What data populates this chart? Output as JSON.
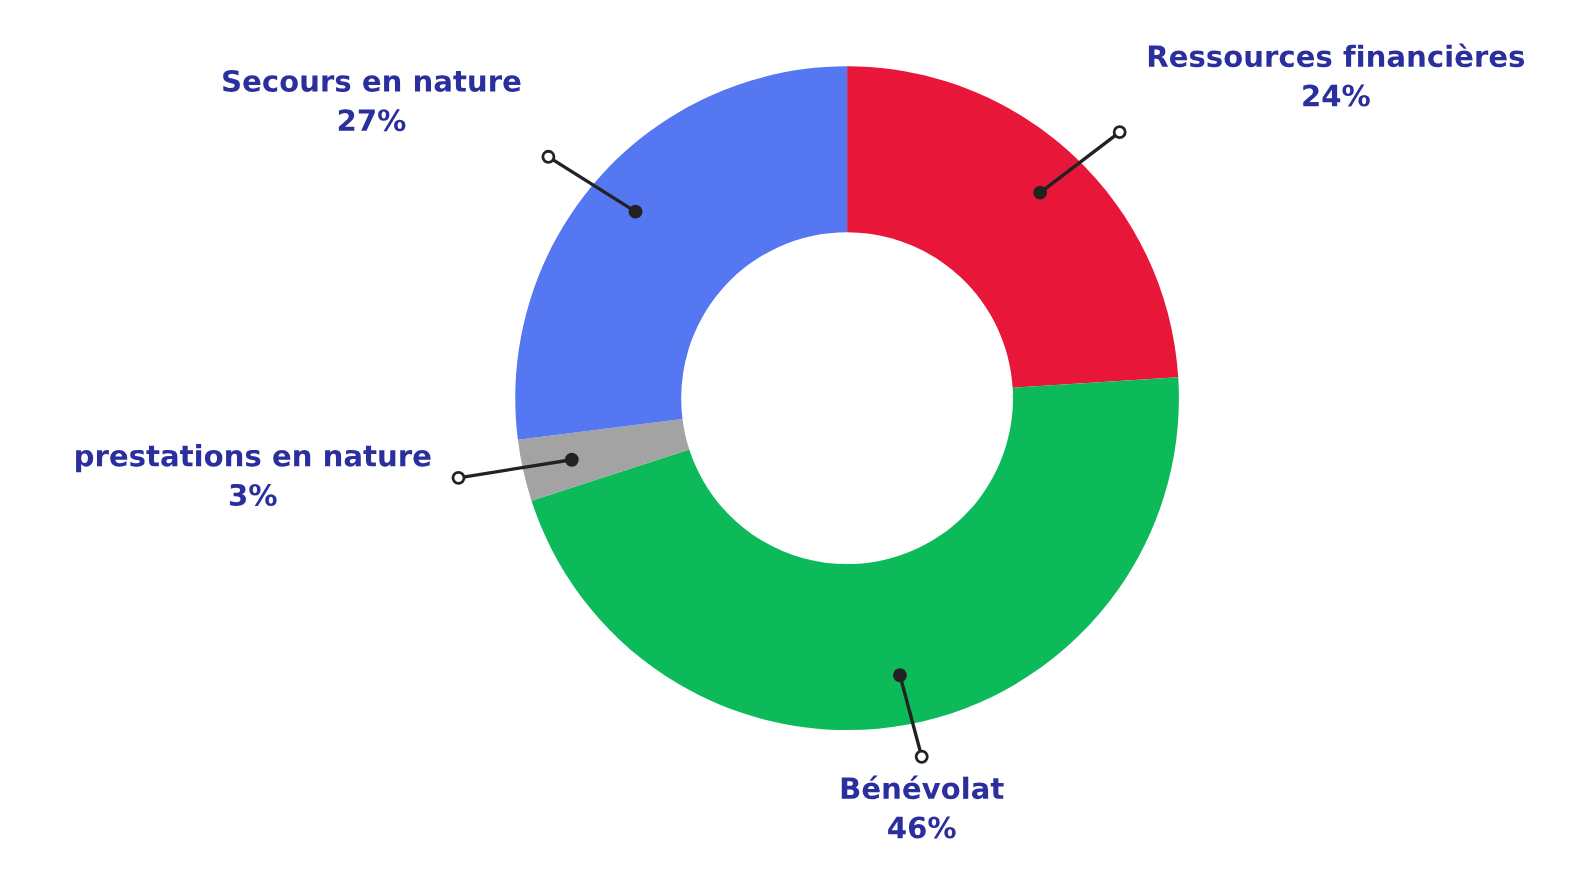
{
  "chart_data": {
    "type": "donut",
    "categories": [
      "Ressources financières",
      "Bénévolat",
      "prestations en nature",
      "Secours en nature"
    ],
    "values": [
      24,
      46,
      3,
      27
    ],
    "colors": [
      "#e8173a",
      "#0dba5a",
      "#a3a3a3",
      "#5577f2"
    ],
    "value_labels": [
      "24%",
      "46%",
      "3%",
      "27%"
    ]
  }
}
